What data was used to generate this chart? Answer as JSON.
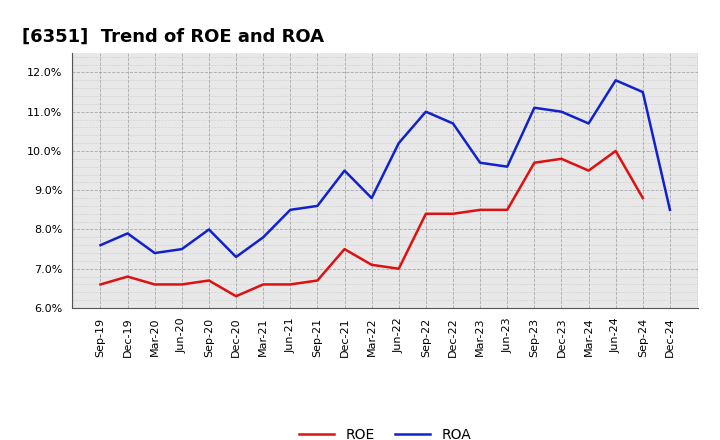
{
  "title": "[6351]  Trend of ROE and ROA",
  "labels": [
    "Sep-19",
    "Dec-19",
    "Mar-20",
    "Jun-20",
    "Sep-20",
    "Dec-20",
    "Mar-21",
    "Jun-21",
    "Sep-21",
    "Dec-21",
    "Mar-22",
    "Jun-22",
    "Sep-22",
    "Dec-22",
    "Mar-23",
    "Jun-23",
    "Sep-23",
    "Dec-23",
    "Mar-24",
    "Jun-24",
    "Sep-24",
    "Dec-24"
  ],
  "ROE": [
    6.6,
    6.8,
    6.6,
    6.6,
    6.7,
    6.3,
    6.6,
    6.6,
    6.7,
    7.5,
    7.1,
    7.0,
    8.4,
    8.4,
    8.5,
    8.5,
    9.7,
    9.8,
    9.5,
    10.0,
    8.8,
    null
  ],
  "ROA": [
    7.6,
    7.9,
    7.4,
    7.5,
    8.0,
    7.3,
    7.8,
    8.5,
    8.6,
    9.5,
    8.8,
    10.2,
    11.0,
    10.7,
    9.7,
    9.6,
    11.1,
    11.0,
    10.7,
    11.8,
    11.5,
    8.5
  ],
  "roe_color": "#dd1111",
  "roa_color": "#1122cc",
  "plot_bg_color": "#e8e8e8",
  "fig_bg_color": "#ffffff",
  "grid_color": "#999999",
  "ylim": [
    6.0,
    12.5
  ],
  "yticks": [
    6.0,
    7.0,
    8.0,
    9.0,
    10.0,
    11.0,
    12.0
  ],
  "title_fontsize": 13,
  "axis_fontsize": 8,
  "legend_fontsize": 10,
  "line_width": 1.8
}
